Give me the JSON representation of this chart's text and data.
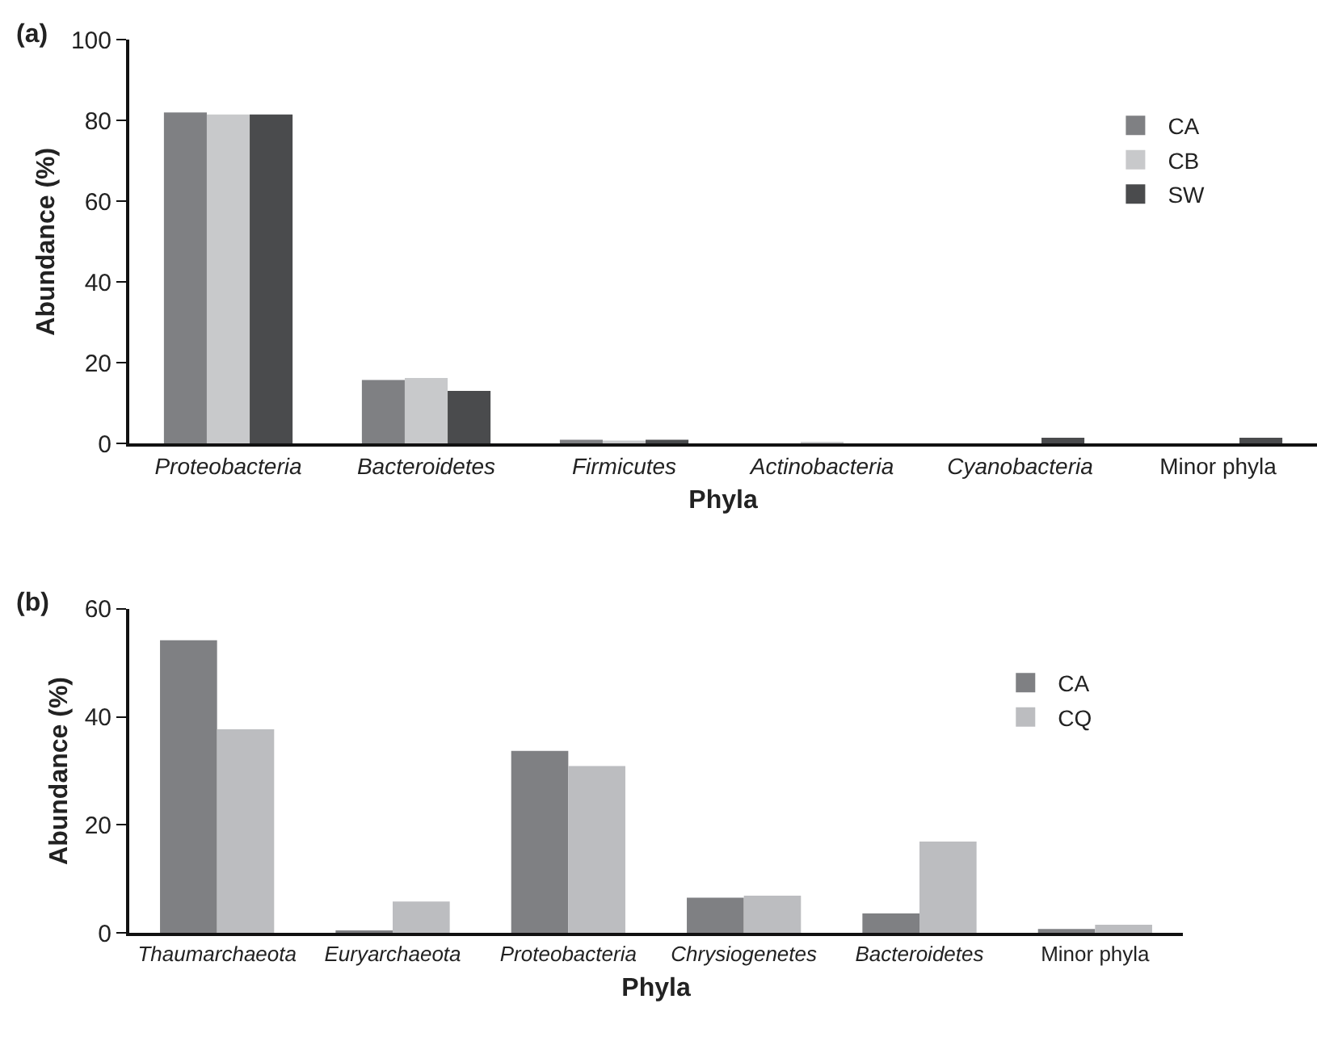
{
  "chart_data": [
    {
      "type": "bar",
      "title": "(a)",
      "xlabel": "Phyla",
      "ylabel": "Abundance (%)",
      "categories": [
        "Proteobacteria",
        "Bacteroidetes",
        "Firmicutes",
        "Actinobacteria",
        "Cyanobacteria",
        "Minor phyla"
      ],
      "series": [
        {
          "name": "CA",
          "color": "#7f8083",
          "values": [
            82,
            15.8,
            1,
            0,
            0,
            0
          ]
        },
        {
          "name": "CB",
          "color": "#c8c9cb",
          "values": [
            81.5,
            16.3,
            0.8,
            0.5,
            0,
            0
          ]
        },
        {
          "name": "SW",
          "color": "#4a4b4d",
          "values": [
            81.5,
            13.1,
            1,
            0,
            1.5,
            1.5
          ]
        }
      ],
      "ylim": [
        0,
        100
      ],
      "yticks": [
        0,
        20,
        40,
        60,
        80,
        100
      ],
      "legend": "top right"
    },
    {
      "type": "bar",
      "title": "(b)",
      "xlabel": "Phyla",
      "ylabel": "Abundance (%)",
      "categories": [
        "Thaumarchaeota",
        "Euryarchaeota",
        "Proteobacteria",
        "Chrysiogenetes",
        "Bacteroidetes",
        "Minor phyla"
      ],
      "series": [
        {
          "name": "CA",
          "color": "#7f8083",
          "values": [
            54.2,
            0.4,
            33.7,
            6.5,
            3.6,
            0.7
          ]
        },
        {
          "name": "CQ",
          "color": "#bcbdc0",
          "values": [
            37.7,
            5.8,
            30.9,
            6.9,
            16.9,
            1.5
          ]
        }
      ],
      "ylim": [
        0,
        60
      ],
      "yticks": [
        0,
        20,
        40,
        60
      ],
      "legend": "top right"
    }
  ]
}
